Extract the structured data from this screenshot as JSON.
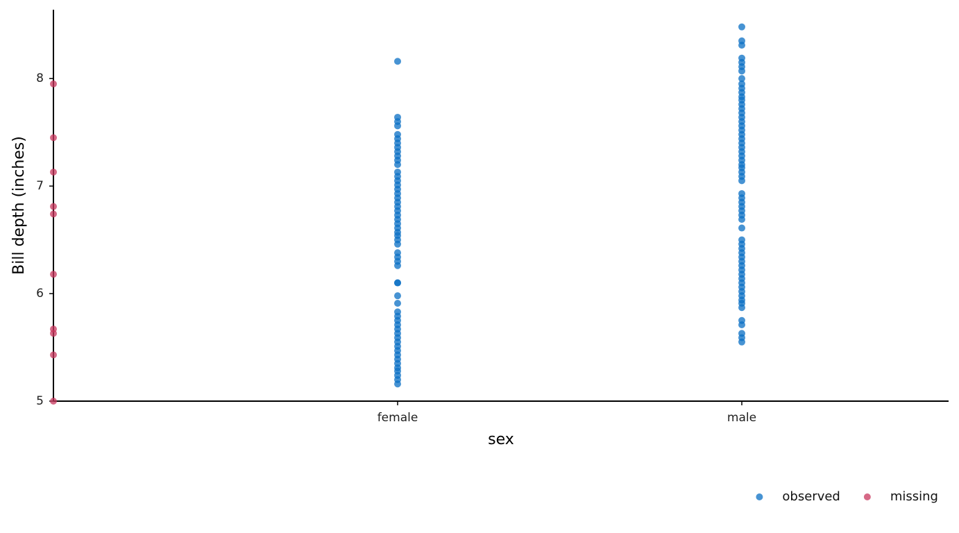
{
  "chart_data": {
    "type": "scatter",
    "x_label": "sex",
    "y_label": "Bill depth (inches)",
    "categories": [
      null,
      "female",
      "male"
    ],
    "ylim": [
      5,
      8.64
    ],
    "yticks": [
      5,
      6,
      7,
      8
    ],
    "grid": false,
    "legend": "bottom-right",
    "series": [
      {
        "name": "observed",
        "color": "#0a6fc4",
        "x": [
          "female",
          "female",
          "female",
          "female",
          "female",
          "female",
          "female",
          "female",
          "female",
          "female",
          "female",
          "female",
          "female",
          "female",
          "female",
          "female",
          "female",
          "female",
          "female",
          "female",
          "female",
          "female",
          "female",
          "female",
          "female",
          "female",
          "female",
          "female",
          "female",
          "female",
          "female",
          "female",
          "female",
          "female",
          "female",
          "female",
          "female",
          "female",
          "female",
          "female",
          "female",
          "female",
          "female",
          "female",
          "female",
          "female",
          "female",
          "female",
          "female",
          "female",
          "female",
          "female",
          "female",
          "female",
          "female",
          "female",
          "male",
          "male",
          "male",
          "male",
          "male",
          "male",
          "male",
          "male",
          "male",
          "male",
          "male",
          "male",
          "male",
          "male",
          "male",
          "male",
          "male",
          "male",
          "male",
          "male",
          "male",
          "male",
          "male",
          "male",
          "male",
          "male",
          "male",
          "male",
          "male",
          "male",
          "male",
          "male",
          "male",
          "male",
          "male",
          "male",
          "male",
          "male",
          "male",
          "male",
          "male",
          "male",
          "male",
          "male",
          "male",
          "male",
          "male",
          "male",
          "male",
          "male",
          "male",
          "male",
          "male",
          "male",
          "male",
          "male",
          "male",
          "male",
          "male",
          "male",
          "male",
          "male"
        ],
        "values": [
          8.16,
          7.64,
          7.6,
          7.56,
          7.48,
          7.44,
          7.4,
          7.36,
          7.32,
          7.28,
          7.24,
          7.2,
          7.13,
          7.09,
          7.05,
          7.01,
          6.97,
          6.93,
          6.89,
          6.85,
          6.81,
          6.77,
          6.73,
          6.69,
          6.65,
          6.61,
          6.57,
          6.54,
          6.5,
          6.46,
          6.38,
          6.34,
          6.3,
          6.26,
          6.1,
          6.1,
          5.98,
          5.91,
          5.83,
          5.79,
          5.75,
          5.71,
          5.67,
          5.63,
          5.59,
          5.55,
          5.51,
          5.47,
          5.43,
          5.39,
          5.35,
          5.31,
          5.28,
          5.24,
          5.2,
          5.16,
          8.48,
          8.35,
          8.31,
          8.19,
          8.15,
          8.11,
          8.07,
          8,
          7.95,
          7.91,
          7.87,
          7.83,
          7.8,
          7.76,
          7.72,
          7.68,
          7.64,
          7.6,
          7.56,
          7.52,
          7.48,
          7.44,
          7.4,
          7.36,
          7.32,
          7.28,
          7.24,
          7.2,
          7.17,
          7.13,
          7.09,
          7.05,
          6.93,
          6.89,
          6.85,
          6.81,
          6.77,
          6.73,
          6.69,
          6.61,
          6.5,
          6.46,
          6.42,
          6.38,
          6.34,
          6.3,
          6.26,
          6.22,
          6.18,
          6.14,
          6.1,
          6.06,
          6.02,
          5.98,
          5.94,
          5.91,
          5.87,
          5.75,
          5.71,
          5.63,
          5.59,
          5.55
        ]
      },
      {
        "name": "missing",
        "color": "#c8375e",
        "x": [
          null,
          null,
          null,
          null,
          null,
          null,
          null,
          null,
          null,
          null
        ],
        "values": [
          7.95,
          7.45,
          7.13,
          6.81,
          6.74,
          6.18,
          5.67,
          5.63,
          5.43,
          5
        ]
      }
    ]
  }
}
